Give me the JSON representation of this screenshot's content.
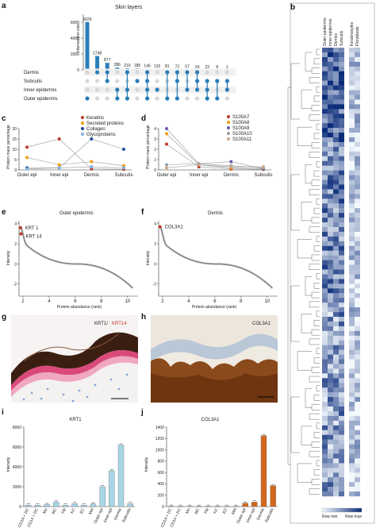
{
  "panels": {
    "a": {
      "letter": "a",
      "title": "Skin layers",
      "ylabel": "Intersection size",
      "yticks": [
        "0",
        "2000",
        "4000",
        "6000"
      ],
      "layers": [
        "Dermis",
        "Subcutis",
        "Inner epidermis",
        "Outer epidermis"
      ]
    },
    "b": {
      "letter": "b",
      "columns": [
        "Outer epidermis",
        "Inner epidermis",
        "Dermis",
        "Subcutis",
        "Keratinocytes",
        "Fibroblasts"
      ],
      "scale_min": "Row min",
      "scale_max": "Row max"
    },
    "c": {
      "letter": "c",
      "ylabel": "Protein mass percentage",
      "legend": [
        "Keratins",
        "Secreted proteins",
        "Collagen",
        "Glycoproteins"
      ]
    },
    "d": {
      "letter": "d",
      "ylabel": "Protein mass percentage",
      "legend": [
        "S100A7",
        "S100A8",
        "S100A9",
        "S100A10",
        "S100A11"
      ]
    },
    "e": {
      "letter": "e",
      "title": "Outer epidermis",
      "labels": [
        "KRT 1",
        "KRT 14"
      ],
      "ylabel": "Intensity",
      "xlabel": "Protein abundance (rank)"
    },
    "f": {
      "letter": "f",
      "title": "Dermis",
      "labels": [
        "COL3A1"
      ],
      "ylabel": "Intensity",
      "xlabel": "Protein abundance (rank)"
    },
    "g": {
      "letter": "g",
      "stain_a": "KRT1/",
      "stain_b": "KRT14"
    },
    "h": {
      "letter": "h",
      "stain": "COL3A1"
    },
    "i": {
      "letter": "i",
      "title": "KRT1",
      "ylabel": "Intensity"
    },
    "j": {
      "letter": "j",
      "title": "COL3A1",
      "ylabel": "Intensity"
    }
  },
  "chart_data": [
    {
      "id": "a",
      "type": "bar",
      "title": "Skin layers",
      "ylabel": "Intersection size",
      "ylim": [
        0,
        7000
      ],
      "values": [
        6025,
        1748,
        877,
        286,
        210,
        185,
        146,
        115,
        81,
        72,
        57,
        24,
        23,
        8,
        1
      ],
      "membership": [
        [
          0,
          0,
          0,
          1
        ],
        [
          1,
          0,
          0,
          0
        ],
        [
          1,
          1,
          0,
          0
        ],
        [
          0,
          0,
          1,
          1
        ],
        [
          1,
          0,
          1,
          1
        ],
        [
          0,
          1,
          0,
          0
        ],
        [
          1,
          1,
          1,
          1
        ],
        [
          0,
          0,
          1,
          0
        ],
        [
          1,
          0,
          0,
          1
        ],
        [
          1,
          1,
          0,
          1
        ],
        [
          1,
          0,
          1,
          0
        ],
        [
          1,
          1,
          1,
          0
        ],
        [
          0,
          1,
          1,
          1
        ],
        [
          0,
          1,
          0,
          1
        ],
        [
          0,
          1,
          1,
          0
        ]
      ],
      "colors": {
        "bar": "#2a7db8",
        "dot_on": "#2a7db8",
        "dot_off": "#d7d7d7"
      }
    },
    {
      "id": "c",
      "type": "line",
      "categories": [
        "Outer epi",
        "Inner epi",
        "Dermis",
        "Subcutis"
      ],
      "ylim": [
        0,
        20
      ],
      "yticks": [
        "0",
        "5",
        "10",
        "15",
        "20"
      ],
      "series": [
        {
          "name": "Keratins",
          "color": "#c0392b",
          "values": [
            11,
            15,
            0.5,
            0.3
          ]
        },
        {
          "name": "Secreted proteins",
          "color": "#f39c12",
          "values": [
            6,
            2.5,
            4,
            2
          ]
        },
        {
          "name": "Collagen",
          "color": "#1f4e99",
          "values": [
            1,
            1,
            15,
            10
          ]
        },
        {
          "name": "Glycoproteins",
          "color": "#7fb3e0",
          "values": [
            0.5,
            1,
            1.5,
            1
          ]
        }
      ]
    },
    {
      "id": "d",
      "type": "line",
      "categories": [
        "Outer epi",
        "Inner epi",
        "Dermis",
        "Subcutis"
      ],
      "ylim": [
        0,
        4
      ],
      "yticks": [
        "0",
        "1",
        "2",
        "3",
        "4"
      ],
      "series": [
        {
          "name": "S100A7",
          "color": "#c0392b",
          "values": [
            2.5,
            0.3,
            0.1,
            0.05
          ]
        },
        {
          "name": "S100A8",
          "color": "#f39c12",
          "values": [
            3.5,
            0.5,
            0.2,
            0.1
          ]
        },
        {
          "name": "S100A9",
          "color": "#6c5ba8",
          "values": [
            4,
            0.6,
            0.8,
            0.1
          ]
        },
        {
          "name": "S100A10",
          "color": "#9aa0a6",
          "values": [
            0.5,
            0.6,
            0.4,
            0.2
          ]
        },
        {
          "name": "S100A11",
          "color": "#c9a98a",
          "values": [
            0.2,
            0.5,
            0.3,
            0.3
          ]
        }
      ]
    },
    {
      "id": "e",
      "type": "scatter",
      "title": "Outer epidermis",
      "xlabel": "Protein abundance (rank)",
      "ylabel": "Intensity",
      "xticks": [
        "2",
        "4",
        "6",
        "8",
        "10"
      ],
      "yticks": [
        "-2",
        "0",
        "2",
        "4"
      ],
      "xlim": [
        1.7,
        10.8
      ],
      "ylim": [
        -3.2,
        4.3
      ],
      "highlight": [
        {
          "label": "KRT 1",
          "x": 1.8,
          "y": 3.6
        },
        {
          "label": "KRT 14",
          "x": 1.85,
          "y": 3.0
        }
      ]
    },
    {
      "id": "f",
      "type": "scatter",
      "title": "Dermis",
      "xlabel": "Protein abundance (rank)",
      "ylabel": "Intensity",
      "xticks": [
        "2",
        "4",
        "6",
        "8",
        "10"
      ],
      "yticks": [
        "-2",
        "0",
        "2",
        "4"
      ],
      "xlim": [
        1.7,
        10.8
      ],
      "ylim": [
        -3.2,
        4.3
      ],
      "highlight": [
        {
          "label": "COL3A1",
          "x": 1.8,
          "y": 3.7
        }
      ]
    },
    {
      "id": "i",
      "type": "bar",
      "title": "KRT1",
      "ylabel": "Intensity",
      "ylim": [
        0,
        8000
      ],
      "yticks": [
        "0",
        "2000",
        "4000",
        "6000",
        "8000"
      ],
      "categories": [
        "CD1A + DC",
        "CD14 + DC",
        "Mo",
        "MC",
        "Fib",
        "KC",
        "EC",
        "Mel",
        "Outer epi",
        "Inner epi",
        "Dermis",
        "Subcutis"
      ],
      "values": [
        150,
        150,
        200,
        450,
        150,
        300,
        150,
        250,
        2000,
        3600,
        6200,
        300
      ],
      "colors": {
        "bar": "#a8d5e6"
      }
    },
    {
      "id": "j",
      "type": "bar",
      "title": "COL3A1",
      "ylabel": "Intensity",
      "ylim": [
        0,
        1400
      ],
      "yticks": [
        "0",
        "200",
        "400",
        "600",
        "800",
        "1000",
        "1200",
        "1400"
      ],
      "categories": [
        "CD1A + DC",
        "CD14 + DC",
        "Mo",
        "MC",
        "Fib",
        "KC",
        "EC",
        "Mel",
        "Outer epi",
        "Inner epi",
        "Dermis",
        "Subcutis"
      ],
      "values": [
        5,
        5,
        5,
        5,
        5,
        5,
        5,
        5,
        60,
        80,
        1250,
        370
      ],
      "colors": {
        "bar": "#d2691e"
      }
    }
  ]
}
